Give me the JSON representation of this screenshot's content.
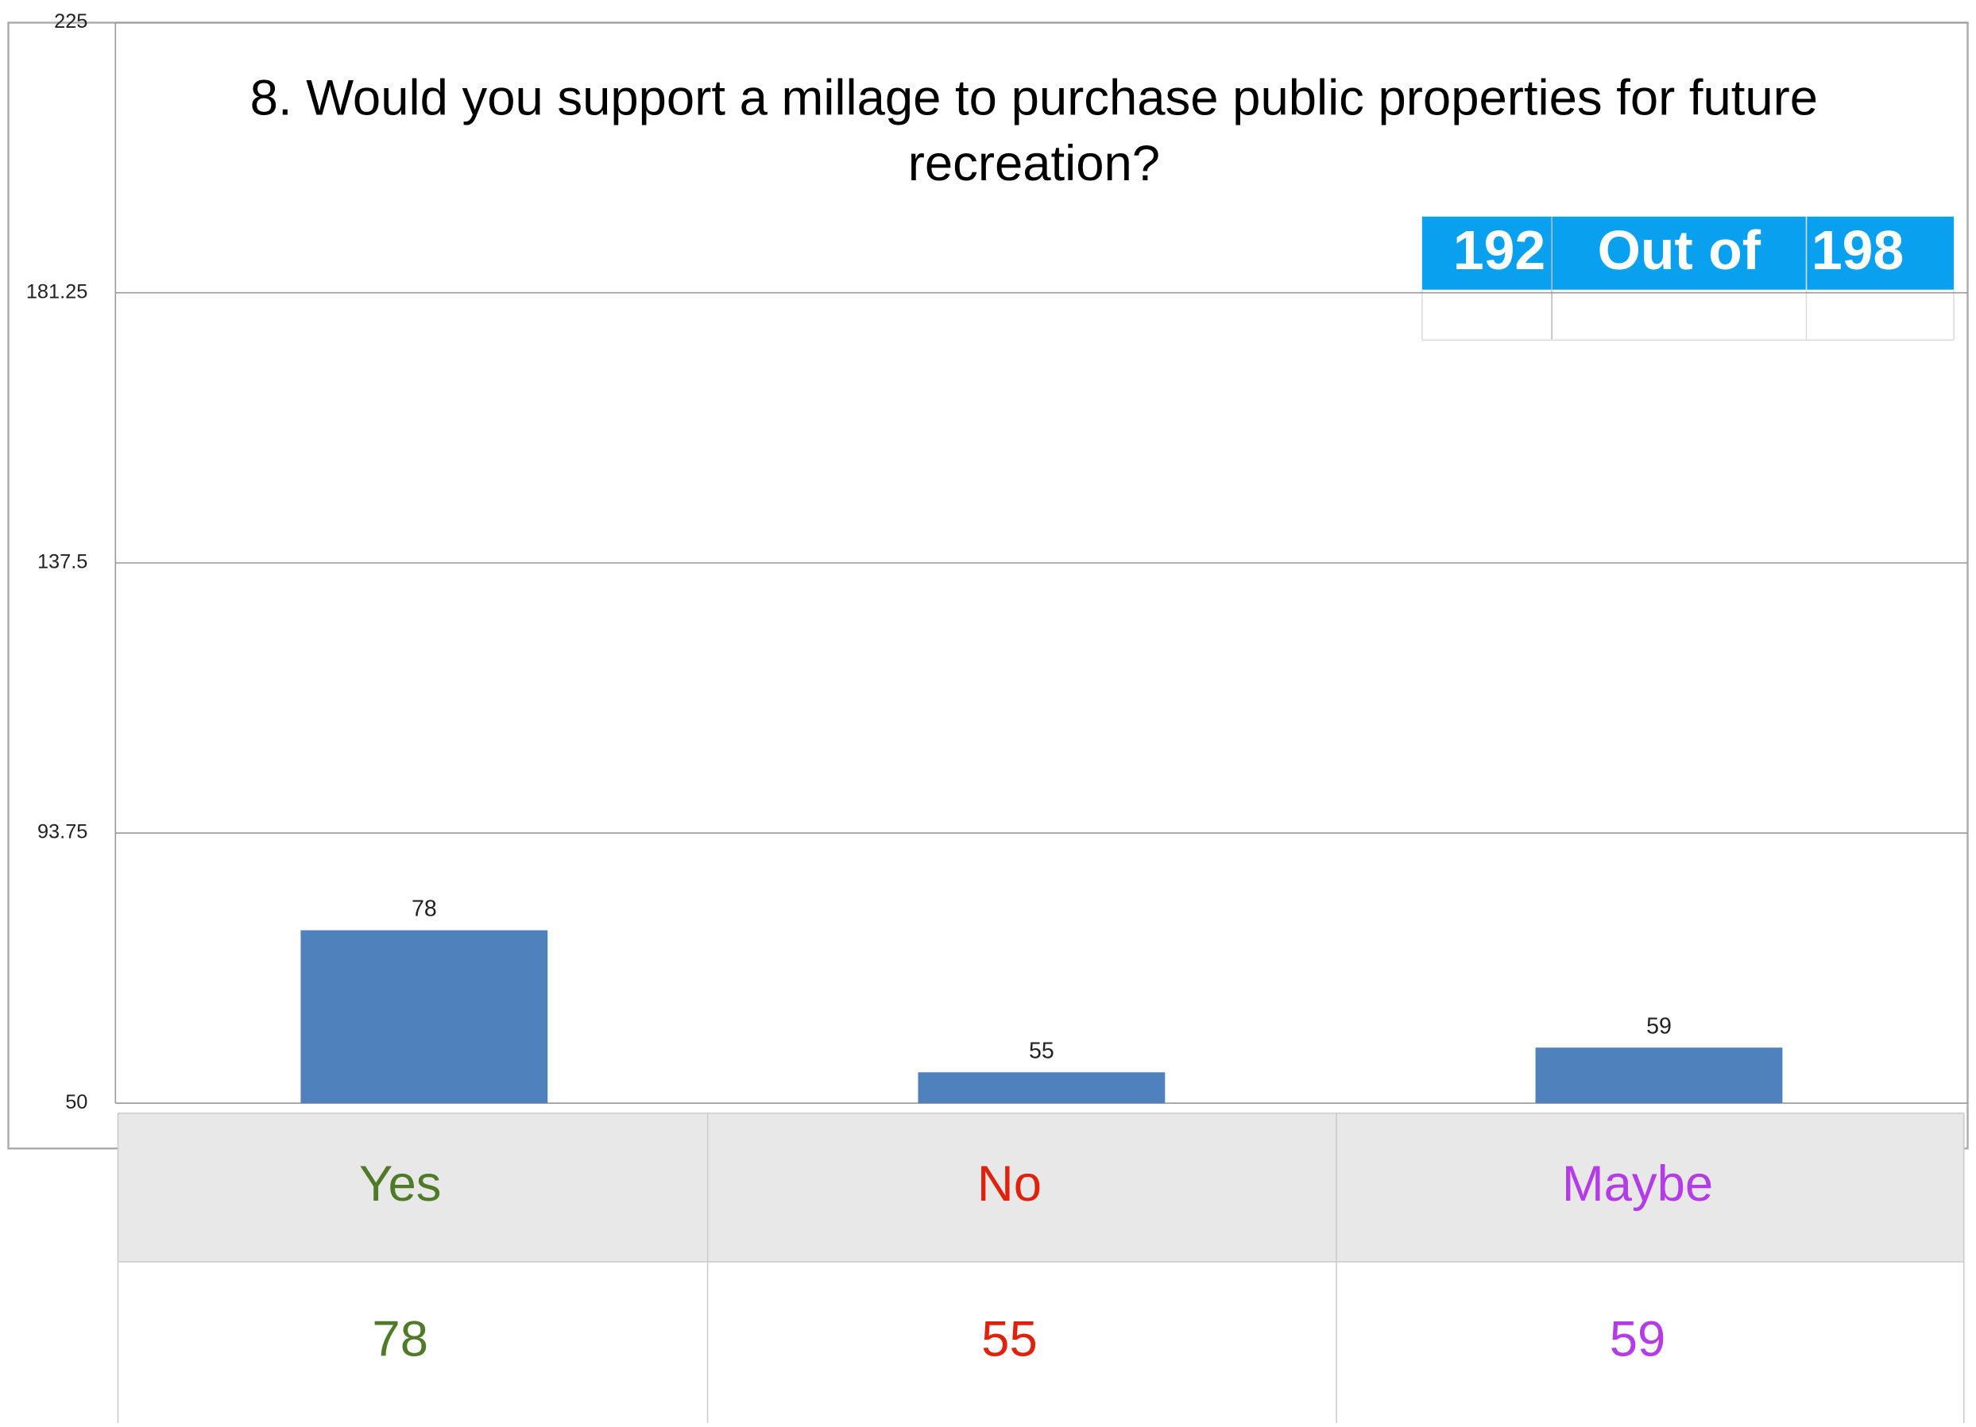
{
  "chart_data": {
    "type": "bar",
    "title": "8. Would you support a millage to purchase public properties for future recreation?",
    "categories": [
      "Yes",
      "No",
      "Maybe"
    ],
    "values": [
      78,
      55,
      59
    ],
    "color": "#4f81bd",
    "category_colors": [
      "#4f7a28",
      "#e0210b",
      "#b43ce6"
    ],
    "ylim": [
      50,
      225
    ],
    "yticks": [
      50,
      93.75,
      137.5,
      181.25,
      225
    ],
    "grid": true
  },
  "summary": {
    "answered": 192,
    "label": "Out of",
    "total": 198
  }
}
